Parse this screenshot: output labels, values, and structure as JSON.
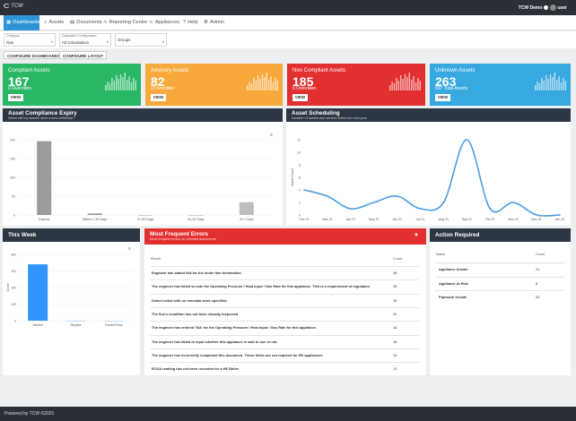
{
  "brand": {
    "logo": "TCW"
  },
  "user": {
    "name": "TCW Demo",
    "avatar_label": "user"
  },
  "nav": [
    {
      "label": "Dashboards",
      "icon": "dashboard-icon",
      "glyph": "▦"
    },
    {
      "label": "Assets",
      "icon": "home-icon",
      "glyph": "⌂"
    },
    {
      "label": "Documents",
      "icon": "document-icon",
      "glyph": "▤"
    },
    {
      "label": "Reporting Centre",
      "icon": "chart-icon",
      "glyph": "∿"
    },
    {
      "label": "Appliances",
      "icon": "chart-icon",
      "glyph": "∿"
    },
    {
      "label": "Help",
      "icon": "help-icon",
      "glyph": "?"
    },
    {
      "label": "Admin",
      "icon": "admin-icon",
      "glyph": "⚙"
    }
  ],
  "filters": [
    {
      "label": "Category",
      "value": "Gas"
    },
    {
      "label": "Calculator Configuration",
      "value": "All Calculations"
    },
    {
      "label": "",
      "value": "Groups"
    }
  ],
  "buttons": {
    "configure_dashboards": "CONFIGURE DASHBOARDS",
    "configure_layout": "CONFIGURE LAYOUT"
  },
  "cards": [
    {
      "title": "Compliant Assets",
      "value": "167",
      "sub": "0 Overriden",
      "view": "VIEW",
      "color": "#29b765"
    },
    {
      "title": "Advisory Assets",
      "value": "82",
      "sub": "0 Overriden",
      "view": "VIEW",
      "color": "#f7a93c"
    },
    {
      "title": "Non Compliant Assets",
      "value": "185",
      "sub": "0 Overriden",
      "view": "VIEW",
      "color": "#e23030"
    },
    {
      "title": "Unknown Assets",
      "value": "263",
      "sub": "697 Total Assets",
      "view": "VIEW",
      "color": "#38a8e0"
    }
  ],
  "expiry": {
    "title": "Asset Compliance Expiry",
    "subtitle": "When will my assets need a new certificate?"
  },
  "scheduling": {
    "title": "Asset Scheduling",
    "subtitle": "Number of assets due service within the next year"
  },
  "week": {
    "title": "This Week"
  },
  "errors": {
    "title": "Most Frequent Errors",
    "subtitle": "Most frequent errors on relevant documents",
    "col_result": "Result",
    "col_count": "Count",
    "rows": [
      {
        "text": "Engineer has stated N/A for the boiler flue termination",
        "count": "38"
      },
      {
        "text": "The engineer has failed to note the Operating Pressure / Heat Input / Gas Rate for this appliance. This is a requirement of regulation",
        "count": "36"
      },
      {
        "text": "Defect noted with no remedial work specified.",
        "count": "36"
      },
      {
        "text": "The flue's condition has not been visually inspected.",
        "count": "31"
      },
      {
        "text": "The engineer has entered 'N/A' for the Operating Pressure / Heat Input / Gas Rate for this appliance.",
        "count": "16"
      },
      {
        "text": "The engineer has failed to input whether this appliance is safe to use or not.",
        "count": "16"
      },
      {
        "text": "The engineer has incorrectly completed this document. These fields are not required for RS appliances.",
        "count": "14"
      },
      {
        "text": "ECGA reading has not been recorded for a HE Boiler",
        "count": "13"
      }
    ]
  },
  "action": {
    "title": "Action Required",
    "col_name": "Name",
    "col_count": "Count",
    "rows": [
      {
        "name": "Appliance Unsafe",
        "count": "21"
      },
      {
        "name": "Appliance At Risk",
        "count": "8"
      },
      {
        "name": "Pipework Unsafe",
        "count": "20"
      }
    ]
  },
  "chart_data": [
    {
      "type": "bar",
      "categories": [
        "Expired",
        "Within 1-30 Days",
        "31-60 Days",
        "61-90 Days",
        "91+ Days"
      ],
      "values": [
        196,
        4,
        0,
        0,
        34
      ],
      "ylim": [
        0,
        200
      ],
      "yticks": [
        "0",
        "50",
        "100",
        "150",
        "200"
      ],
      "grid": true,
      "color": "#9b9b9b",
      "highlight_color": "#bdbdbd"
    },
    {
      "type": "line",
      "x": [
        "Feb 21",
        "Mar 21",
        "Apr 21",
        "May 21",
        "Jun 21",
        "Jul 21",
        "Aug 21",
        "Sep 21",
        "Oct 21",
        "Nov 21",
        "Dec 21",
        "Jan 22"
      ],
      "values": [
        4,
        3,
        1,
        2,
        3,
        1,
        2,
        12,
        1,
        2,
        0,
        0
      ],
      "ylim": [
        0,
        12
      ],
      "yticks": [
        "0",
        "2",
        "4",
        "6",
        "8",
        "10",
        "12"
      ],
      "ylabel": "Asset Count",
      "color": "#4a9de0"
    },
    {
      "type": "bar",
      "categories": [
        "Service",
        "Repairs",
        "Forced Entry"
      ],
      "values": [
        340,
        0,
        0
      ],
      "ylim": [
        0,
        400
      ],
      "yticks": [
        "0",
        "100",
        "200",
        "300",
        "400"
      ],
      "ylabel": "Count",
      "color": "#2f94ff"
    }
  ],
  "footer": {
    "text": "Powered by TCW ©2021"
  }
}
